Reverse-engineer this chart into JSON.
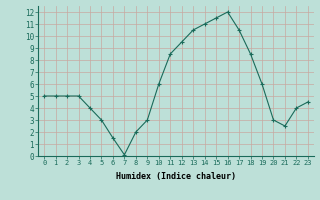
{
  "x": [
    0,
    1,
    2,
    3,
    4,
    5,
    6,
    7,
    8,
    9,
    10,
    11,
    12,
    13,
    14,
    15,
    16,
    17,
    18,
    19,
    20,
    21,
    22,
    23
  ],
  "y": [
    5.0,
    5.0,
    5.0,
    5.0,
    4.0,
    3.0,
    1.5,
    0.1,
    2.0,
    3.0,
    6.0,
    8.5,
    9.5,
    10.5,
    11.0,
    11.5,
    12.0,
    10.5,
    8.5,
    6.0,
    3.0,
    2.5,
    4.0,
    4.5
  ],
  "bg_color": "#bde0d8",
  "grid_color": "#c8a8a0",
  "line_color": "#1a6b5a",
  "marker_color": "#1a6b5a",
  "xlabel": "Humidex (Indice chaleur)",
  "xlim": [
    -0.5,
    23.5
  ],
  "ylim": [
    0,
    12.5
  ],
  "xtick_labels": [
    "0",
    "1",
    "2",
    "3",
    "4",
    "5",
    "6",
    "7",
    "8",
    "9",
    "10",
    "11",
    "12",
    "13",
    "14",
    "15",
    "16",
    "17",
    "18",
    "19",
    "20",
    "21",
    "22",
    "23"
  ],
  "ytick_values": [
    0,
    1,
    2,
    3,
    4,
    5,
    6,
    7,
    8,
    9,
    10,
    11,
    12
  ]
}
